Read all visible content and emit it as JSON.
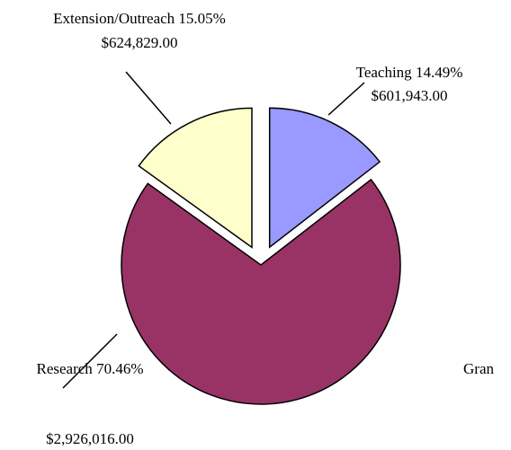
{
  "chart_data": {
    "type": "pie",
    "categories": [
      "Teaching",
      "Extension/Outreach",
      "Research"
    ],
    "values": [
      14.49,
      15.05,
      70.46
    ],
    "value_labels": [
      "14.49%",
      "15.05%",
      "70.46%"
    ],
    "amounts": [
      601943.0,
      624829.0,
      2926016.0
    ],
    "amount_labels": [
      "$601,943.00",
      "$624,829.00",
      "$2,926,016.00"
    ],
    "colors": [
      "#9999ff",
      "#ffffcc",
      "#993366"
    ],
    "annotation": "Gran"
  }
}
